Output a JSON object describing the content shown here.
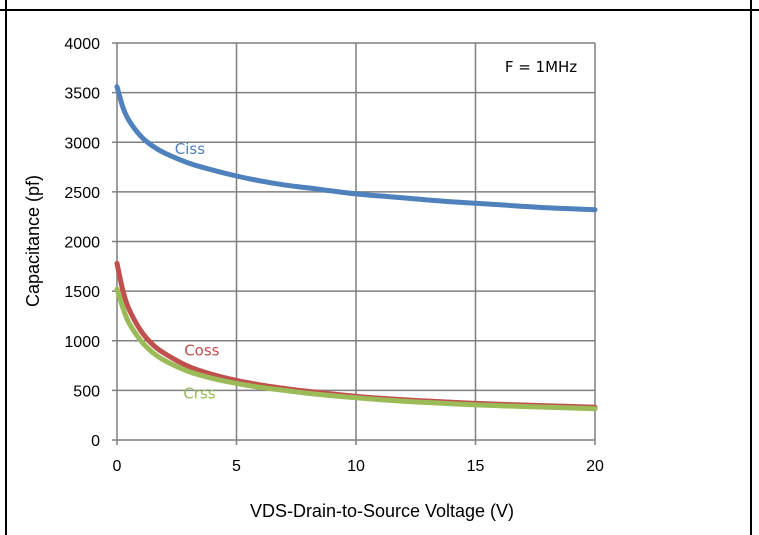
{
  "chart_data": {
    "type": "line",
    "title": "",
    "xlabel": "VDS-Drain-to-Source Voltage (V)",
    "ylabel": "Capacitance (pf)",
    "xlim": [
      0,
      20
    ],
    "ylim": [
      0,
      4000
    ],
    "x_ticks": [
      0,
      5,
      10,
      15,
      20
    ],
    "y_ticks": [
      0,
      500,
      1000,
      1500,
      2000,
      2500,
      3000,
      3500,
      4000
    ],
    "grid": true,
    "annotation": "F = 1MHz",
    "series": [
      {
        "name": "Ciss",
        "color": "#4F81BD",
        "x": [
          0,
          0.25,
          0.5,
          1,
          1.5,
          2,
          3,
          4,
          5,
          6,
          7,
          8,
          10,
          12,
          14,
          16,
          18,
          20
        ],
        "values": [
          3560,
          3350,
          3220,
          3060,
          2960,
          2890,
          2790,
          2720,
          2660,
          2610,
          2570,
          2540,
          2480,
          2440,
          2400,
          2370,
          2340,
          2320
        ]
      },
      {
        "name": "Coss",
        "color": "#C0504D",
        "x": [
          0,
          0.25,
          0.5,
          1,
          1.5,
          2,
          3,
          4,
          5,
          6,
          7,
          8,
          10,
          12,
          14,
          16,
          18,
          20
        ],
        "values": [
          1780,
          1500,
          1320,
          1100,
          960,
          870,
          740,
          660,
          600,
          555,
          520,
          490,
          440,
          405,
          380,
          360,
          345,
          330
        ]
      },
      {
        "name": "Crss",
        "color": "#9BBB59",
        "x": [
          0,
          0.25,
          0.5,
          1,
          1.5,
          2,
          3,
          4,
          5,
          6,
          7,
          8,
          10,
          12,
          14,
          16,
          18,
          20
        ],
        "values": [
          1520,
          1330,
          1180,
          1000,
          880,
          800,
          690,
          620,
          570,
          530,
          500,
          470,
          425,
          390,
          365,
          345,
          330,
          315
        ]
      }
    ]
  }
}
